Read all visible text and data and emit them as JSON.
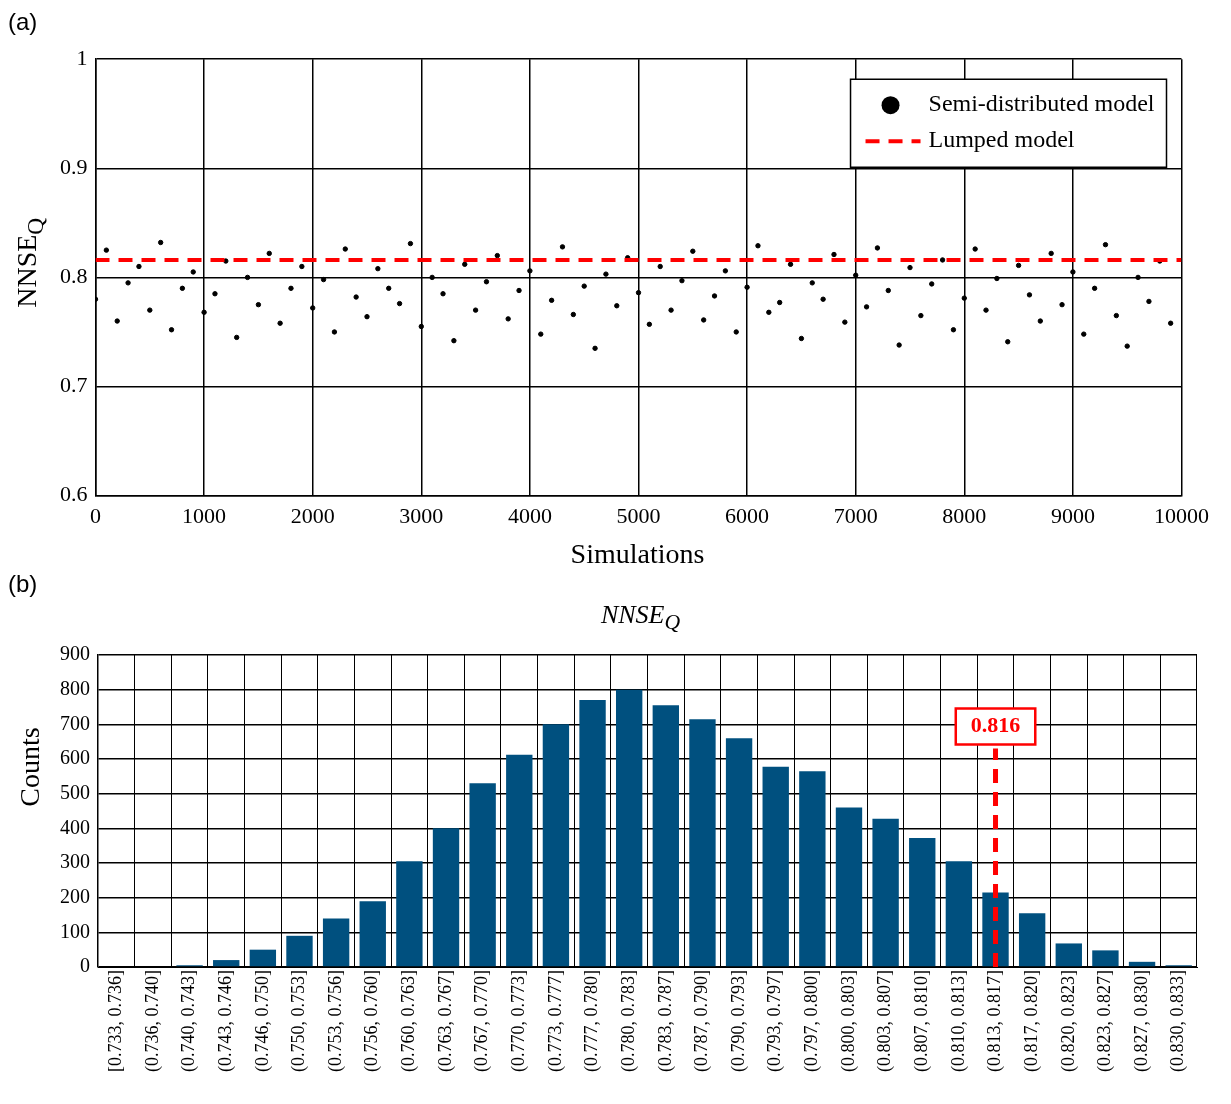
{
  "chart_data": [
    {
      "type": "scatter",
      "xlabel": "Simulations",
      "ylabel": "NNSE$_{Q}$",
      "annotations": [
        "(a)"
      ],
      "xlim": [
        0,
        10000
      ],
      "xticks": [
        0,
        1000,
        2000,
        3000,
        4000,
        5000,
        6000,
        7000,
        8000,
        9000,
        10000
      ],
      "ylim": [
        0.6,
        1
      ],
      "yticks": [
        0.6,
        0.7,
        0.8,
        0.9,
        1
      ],
      "grid": true,
      "legend": "top right",
      "series": [
        {
          "name": "Semi-distributed model",
          "color": "#000000",
          "marker": "circle",
          "x": [
            0,
            100,
            200,
            300,
            400,
            500,
            600,
            700,
            800,
            900,
            1000,
            1100,
            1200,
            1300,
            1400,
            1500,
            1600,
            1700,
            1800,
            1900,
            2000,
            2100,
            2200,
            2300,
            2400,
            2500,
            2600,
            2700,
            2800,
            2900,
            3000,
            3100,
            3200,
            3300,
            3400,
            3500,
            3600,
            3700,
            3800,
            3900,
            4000,
            4100,
            4200,
            4300,
            4400,
            4500,
            4600,
            4700,
            4800,
            4900,
            5000,
            5100,
            5200,
            5300,
            5400,
            5500,
            5600,
            5700,
            5800,
            5900,
            6000,
            6100,
            6200,
            6300,
            6400,
            6500,
            6600,
            6700,
            6800,
            6900,
            7000,
            7100,
            7200,
            7300,
            7400,
            7500,
            7600,
            7700,
            7800,
            7900,
            8000,
            8100,
            8200,
            8300,
            8400,
            8500,
            8600,
            8700,
            8800,
            8900,
            9000,
            9100,
            9200,
            9300,
            9400,
            9500,
            9600,
            9700,
            9800,
            9900
          ],
          "values": [
            0.78,
            0.825,
            0.76,
            0.795,
            0.81,
            0.77,
            0.832,
            0.752,
            0.79,
            0.805,
            0.768,
            0.785,
            0.815,
            0.745,
            0.8,
            0.775,
            0.822,
            0.758,
            0.79,
            0.81,
            0.772,
            0.798,
            0.75,
            0.826,
            0.782,
            0.764,
            0.808,
            0.79,
            0.776,
            0.831,
            0.755,
            0.8,
            0.785,
            0.742,
            0.812,
            0.77,
            0.796,
            0.82,
            0.762,
            0.788,
            0.806,
            0.748,
            0.779,
            0.828,
            0.766,
            0.792,
            0.735,
            0.803,
            0.774,
            0.818,
            0.786,
            0.757,
            0.81,
            0.77,
            0.797,
            0.824,
            0.761,
            0.783,
            0.806,
            0.75,
            0.791,
            0.829,
            0.768,
            0.777,
            0.812,
            0.744,
            0.795,
            0.78,
            0.821,
            0.759,
            0.802,
            0.773,
            0.827,
            0.788,
            0.738,
            0.809,
            0.765,
            0.794,
            0.816,
            0.752,
            0.781,
            0.826,
            0.77,
            0.799,
            0.741,
            0.811,
            0.784,
            0.76,
            0.822,
            0.775,
            0.805,
            0.748,
            0.79,
            0.83,
            0.765,
            0.737,
            0.8,
            0.778,
            0.815,
            0.758
          ]
        },
        {
          "name": "Lumped model",
          "type": "line",
          "marker": "none",
          "color": "#ff0000",
          "line_style": "dashed",
          "x": [
            0,
            10000
          ],
          "values": [
            0.816,
            0.816
          ]
        }
      ]
    },
    {
      "type": "bar",
      "title": "NNSE$_{Q}$",
      "ylabel": "Counts",
      "annotations": [
        "(b)"
      ],
      "color": "#00507f",
      "ylim": [
        0,
        900
      ],
      "yticks": [
        0,
        100,
        200,
        300,
        400,
        500,
        600,
        700,
        800,
        900
      ],
      "grid": true,
      "categories": [
        "[0.733, 0.736]",
        "(0.736, 0.740]",
        "(0.740, 0.743]",
        "(0.743, 0.746]",
        "(0.746, 0.750]",
        "(0.750, 0.753]",
        "(0.753, 0.756]",
        "(0.756, 0.760]",
        "(0.760, 0.763]",
        "(0.763, 0.767]",
        "(0.767, 0.770]",
        "(0.770, 0.773]",
        "(0.773, 0.777]",
        "(0.777, 0.780]",
        "(0.780, 0.783]",
        "(0.783, 0.787]",
        "(0.787, 0.790]",
        "(0.790, 0.793]",
        "(0.793, 0.797]",
        "(0.797, 0.800]",
        "(0.800, 0.803]",
        "(0.803, 0.807]",
        "(0.807, 0.810]",
        "(0.810, 0.813]",
        "(0.813, 0.817]",
        "(0.817, 0.820]",
        "(0.820, 0.823]",
        "(0.823, 0.827]",
        "(0.827, 0.830]",
        "(0.830, 0.833]"
      ],
      "values": [
        0,
        0,
        5,
        20,
        50,
        90,
        140,
        190,
        305,
        400,
        530,
        612,
        700,
        770,
        800,
        755,
        715,
        660,
        578,
        565,
        460,
        428,
        372,
        305,
        215,
        155,
        68,
        48,
        15,
        5
      ],
      "ref_lines": [
        {
          "axis": "x",
          "value": "(0.813, 0.817]",
          "label": "0.816",
          "color": "#ff0000",
          "line_style": "dashed"
        }
      ]
    }
  ]
}
